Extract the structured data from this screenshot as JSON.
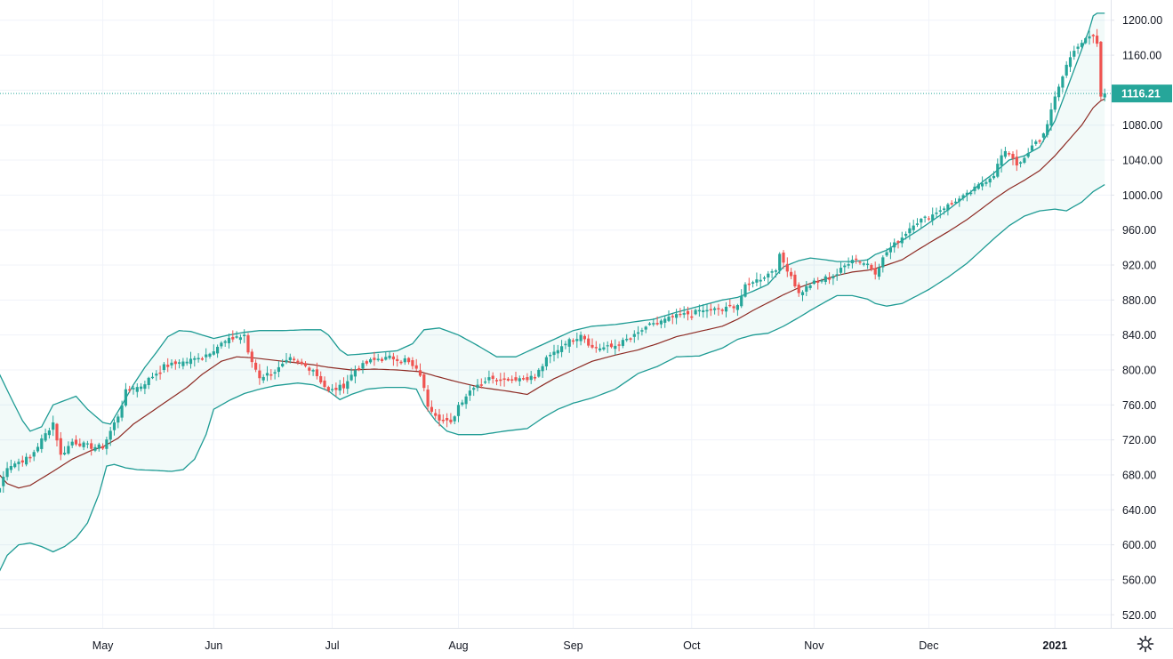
{
  "chart_data": {
    "type": "candlestick",
    "indicator": "Bollinger Bands",
    "y_ticks": [
      "520.00",
      "560.00",
      "600.00",
      "640.00",
      "680.00",
      "720.00",
      "760.00",
      "800.00",
      "840.00",
      "880.00",
      "920.00",
      "960.00",
      "1000.00",
      "1040.00",
      "1080.00",
      "1120.00",
      "1160.00",
      "1200.00"
    ],
    "x_ticks": [
      {
        "label": "May",
        "index": 27,
        "bold": false
      },
      {
        "label": "Jun",
        "index": 56,
        "bold": false
      },
      {
        "label": "Jul",
        "index": 87,
        "bold": false
      },
      {
        "label": "Aug",
        "index": 120,
        "bold": false
      },
      {
        "label": "Sep",
        "index": 150,
        "bold": false
      },
      {
        "label": "Oct",
        "index": 181,
        "bold": false
      },
      {
        "label": "Nov",
        "index": 213,
        "bold": false
      },
      {
        "label": "Dec",
        "index": 243,
        "bold": false
      },
      {
        "label": "2021",
        "index": 276,
        "bold": true
      }
    ],
    "ylim": [
      505,
      1215
    ],
    "last_price": 1116.21,
    "last_price_label": "1116.21",
    "control_points": {
      "close": [
        [
          0,
          665
        ],
        [
          2,
          690
        ],
        [
          8,
          700
        ],
        [
          14,
          740
        ],
        [
          16,
          702
        ],
        [
          19,
          718
        ],
        [
          24,
          712
        ],
        [
          27,
          712
        ],
        [
          31,
          748
        ],
        [
          33,
          775
        ],
        [
          37,
          782
        ],
        [
          43,
          804
        ],
        [
          49,
          810
        ],
        [
          53,
          815
        ],
        [
          58,
          830
        ],
        [
          61,
          836
        ],
        [
          64,
          838
        ],
        [
          65,
          818
        ],
        [
          68,
          792
        ],
        [
          72,
          798
        ],
        [
          76,
          812
        ],
        [
          82,
          800
        ],
        [
          86,
          775
        ],
        [
          90,
          782
        ],
        [
          93,
          800
        ],
        [
          97,
          810
        ],
        [
          102,
          814
        ],
        [
          106,
          812
        ],
        [
          110,
          795
        ],
        [
          112,
          760
        ],
        [
          115,
          745
        ],
        [
          118,
          738
        ],
        [
          120,
          760
        ],
        [
          124,
          782
        ],
        [
          129,
          792
        ],
        [
          134,
          790
        ],
        [
          140,
          792
        ],
        [
          143,
          812
        ],
        [
          147,
          828
        ],
        [
          151,
          838
        ],
        [
          152,
          842
        ],
        [
          155,
          825
        ],
        [
          160,
          826
        ],
        [
          165,
          836
        ],
        [
          171,
          852
        ],
        [
          176,
          860
        ],
        [
          181,
          865
        ],
        [
          185,
          868
        ],
        [
          190,
          870
        ],
        [
          193,
          875
        ],
        [
          195,
          895
        ],
        [
          199,
          905
        ],
        [
          203,
          915
        ],
        [
          204,
          930
        ],
        [
          207,
          908
        ],
        [
          209,
          887
        ],
        [
          212,
          898
        ],
        [
          216,
          905
        ],
        [
          219,
          910
        ],
        [
          223,
          928
        ],
        [
          227,
          920
        ],
        [
          229,
          912
        ],
        [
          232,
          935
        ],
        [
          236,
          952
        ],
        [
          239,
          968
        ],
        [
          243,
          975
        ],
        [
          248,
          988
        ],
        [
          253,
          1000
        ],
        [
          257,
          1014
        ],
        [
          260,
          1024
        ],
        [
          262,
          1045
        ],
        [
          264,
          1050
        ],
        [
          266,
          1035
        ],
        [
          268,
          1040
        ],
        [
          270,
          1055
        ],
        [
          273,
          1070
        ],
        [
          276,
          1110
        ],
        [
          279,
          1150
        ],
        [
          282,
          1172
        ],
        [
          286,
          1183
        ],
        [
          287,
          1173
        ],
        [
          288,
          1112
        ],
        [
          289,
          1116
        ]
      ],
      "basis": [
        [
          0,
          680
        ],
        [
          2,
          670
        ],
        [
          5,
          665
        ],
        [
          8,
          668
        ],
        [
          14,
          684
        ],
        [
          19,
          698
        ],
        [
          24,
          708
        ],
        [
          27,
          712
        ],
        [
          31,
          722
        ],
        [
          35,
          738
        ],
        [
          43,
          762
        ],
        [
          49,
          780
        ],
        [
          53,
          795
        ],
        [
          58,
          810
        ],
        [
          62,
          815
        ],
        [
          66,
          814
        ],
        [
          72,
          811
        ],
        [
          78,
          808
        ],
        [
          82,
          806
        ],
        [
          86,
          803
        ],
        [
          92,
          800
        ],
        [
          98,
          801
        ],
        [
          104,
          800
        ],
        [
          110,
          798
        ],
        [
          114,
          793
        ],
        [
          120,
          786
        ],
        [
          126,
          780
        ],
        [
          134,
          775
        ],
        [
          138,
          772
        ],
        [
          141,
          780
        ],
        [
          145,
          790
        ],
        [
          150,
          800
        ],
        [
          155,
          810
        ],
        [
          161,
          817
        ],
        [
          167,
          823
        ],
        [
          172,
          830
        ],
        [
          177,
          838
        ],
        [
          183,
          844
        ],
        [
          189,
          850
        ],
        [
          193,
          858
        ],
        [
          197,
          868
        ],
        [
          201,
          877
        ],
        [
          205,
          886
        ],
        [
          209,
          894
        ],
        [
          212,
          899
        ],
        [
          216,
          904
        ],
        [
          219,
          908
        ],
        [
          223,
          912
        ],
        [
          227,
          914
        ],
        [
          229,
          916
        ],
        [
          232,
          920
        ],
        [
          236,
          926
        ],
        [
          240,
          937
        ],
        [
          243,
          945
        ],
        [
          248,
          958
        ],
        [
          253,
          972
        ],
        [
          257,
          985
        ],
        [
          260,
          995
        ],
        [
          264,
          1007
        ],
        [
          268,
          1017
        ],
        [
          272,
          1028
        ],
        [
          276,
          1045
        ],
        [
          279,
          1060
        ],
        [
          283,
          1080
        ],
        [
          286,
          1100
        ],
        [
          288,
          1108
        ],
        [
          289,
          1110
        ]
      ],
      "upper": [
        [
          0,
          795
        ],
        [
          3,
          768
        ],
        [
          6,
          742
        ],
        [
          8,
          730
        ],
        [
          11,
          735
        ],
        [
          14,
          760
        ],
        [
          17,
          765
        ],
        [
          20,
          770
        ],
        [
          23,
          755
        ],
        [
          27,
          740
        ],
        [
          29,
          738
        ],
        [
          32,
          760
        ],
        [
          35,
          783
        ],
        [
          38,
          803
        ],
        [
          41,
          820
        ],
        [
          44,
          838
        ],
        [
          47,
          845
        ],
        [
          50,
          844
        ],
        [
          53,
          840
        ],
        [
          56,
          836
        ],
        [
          60,
          840
        ],
        [
          64,
          843
        ],
        [
          68,
          845
        ],
        [
          74,
          845
        ],
        [
          80,
          846
        ],
        [
          84,
          846
        ],
        [
          86,
          840
        ],
        [
          89,
          823
        ],
        [
          91,
          817
        ],
        [
          94,
          818
        ],
        [
          99,
          820
        ],
        [
          104,
          822
        ],
        [
          108,
          830
        ],
        [
          111,
          846
        ],
        [
          115,
          848
        ],
        [
          120,
          840
        ],
        [
          125,
          828
        ],
        [
          130,
          815
        ],
        [
          135,
          815
        ],
        [
          140,
          825
        ],
        [
          145,
          835
        ],
        [
          150,
          845
        ],
        [
          155,
          850
        ],
        [
          161,
          852
        ],
        [
          166,
          855
        ],
        [
          171,
          858
        ],
        [
          177,
          866
        ],
        [
          183,
          873
        ],
        [
          189,
          880
        ],
        [
          193,
          883
        ],
        [
          197,
          890
        ],
        [
          201,
          898
        ],
        [
          205,
          918
        ],
        [
          209,
          925
        ],
        [
          212,
          928
        ],
        [
          216,
          926
        ],
        [
          219,
          924
        ],
        [
          223,
          924
        ],
        [
          227,
          926
        ],
        [
          229,
          932
        ],
        [
          232,
          937
        ],
        [
          236,
          948
        ],
        [
          240,
          959
        ],
        [
          243,
          968
        ],
        [
          248,
          983
        ],
        [
          253,
          1000
        ],
        [
          257,
          1015
        ],
        [
          260,
          1025
        ],
        [
          264,
          1040
        ],
        [
          268,
          1045
        ],
        [
          272,
          1055
        ],
        [
          276,
          1085
        ],
        [
          279,
          1120
        ],
        [
          282,
          1155
        ],
        [
          285,
          1190
        ],
        [
          286,
          1205
        ],
        [
          287,
          1208
        ],
        [
          289,
          1208
        ]
      ],
      "lower": [
        [
          0,
          570
        ],
        [
          2,
          588
        ],
        [
          5,
          600
        ],
        [
          8,
          602
        ],
        [
          11,
          598
        ],
        [
          14,
          592
        ],
        [
          17,
          598
        ],
        [
          20,
          608
        ],
        [
          23,
          625
        ],
        [
          26,
          658
        ],
        [
          28,
          690
        ],
        [
          30,
          692
        ],
        [
          33,
          688
        ],
        [
          36,
          686
        ],
        [
          41,
          685
        ],
        [
          45,
          684
        ],
        [
          48,
          686
        ],
        [
          51,
          698
        ],
        [
          54,
          726
        ],
        [
          56,
          755
        ],
        [
          60,
          765
        ],
        [
          64,
          773
        ],
        [
          68,
          778
        ],
        [
          72,
          782
        ],
        [
          78,
          785
        ],
        [
          82,
          783
        ],
        [
          86,
          776
        ],
        [
          89,
          766
        ],
        [
          92,
          772
        ],
        [
          96,
          778
        ],
        [
          101,
          780
        ],
        [
          106,
          780
        ],
        [
          109,
          778
        ],
        [
          111,
          760
        ],
        [
          114,
          742
        ],
        [
          117,
          730
        ],
        [
          120,
          726
        ],
        [
          126,
          726
        ],
        [
          132,
          730
        ],
        [
          138,
          733
        ],
        [
          142,
          745
        ],
        [
          146,
          755
        ],
        [
          150,
          762
        ],
        [
          155,
          768
        ],
        [
          161,
          778
        ],
        [
          167,
          796
        ],
        [
          172,
          804
        ],
        [
          177,
          815
        ],
        [
          183,
          816
        ],
        [
          189,
          825
        ],
        [
          193,
          835
        ],
        [
          197,
          840
        ],
        [
          201,
          842
        ],
        [
          205,
          850
        ],
        [
          209,
          860
        ],
        [
          212,
          868
        ],
        [
          216,
          878
        ],
        [
          219,
          885
        ],
        [
          223,
          885
        ],
        [
          227,
          881
        ],
        [
          229,
          876
        ],
        [
          232,
          873
        ],
        [
          236,
          876
        ],
        [
          240,
          885
        ],
        [
          243,
          892
        ],
        [
          248,
          906
        ],
        [
          253,
          922
        ],
        [
          257,
          938
        ],
        [
          260,
          950
        ],
        [
          264,
          965
        ],
        [
          268,
          976
        ],
        [
          272,
          982
        ],
        [
          276,
          984
        ],
        [
          279,
          982
        ],
        [
          283,
          992
        ],
        [
          286,
          1004
        ],
        [
          289,
          1012
        ]
      ]
    },
    "volatility_seed": 7
  },
  "colors": {
    "up": "#26a69a",
    "down": "#ef5350",
    "basis": "#8d2a23",
    "band": "#1e9b94",
    "band_fill": "#26a69a",
    "grid": "#f0f3fa",
    "price_line": "#26a69a",
    "axis_border": "#e0e3eb",
    "text": "#131722"
  },
  "icons": {
    "settings": "gear-icon"
  }
}
